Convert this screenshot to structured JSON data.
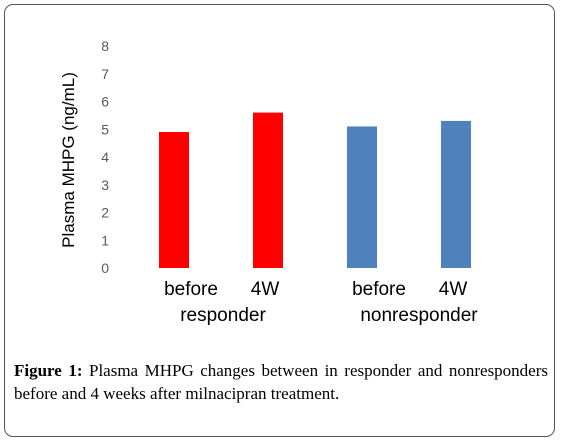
{
  "chart_data": {
    "type": "bar",
    "ylabel": "Plasma MHPG (ng/mL)",
    "ylim": [
      0,
      8
    ],
    "yticks": [
      0,
      1,
      2,
      3,
      4,
      5,
      6,
      7,
      8
    ],
    "grid": false,
    "groups": [
      {
        "label": "responder",
        "color": "#ff0000",
        "bars": [
          {
            "category": "before",
            "value": 4.9
          },
          {
            "category": "4W",
            "value": 5.6
          }
        ]
      },
      {
        "label": "nonresponder",
        "color": "#4f81bd",
        "bars": [
          {
            "category": "before",
            "value": 5.1
          },
          {
            "category": "4W",
            "value": 5.3
          }
        ]
      }
    ]
  },
  "caption": {
    "label": "Figure 1:",
    "text": "Plasma MHPG changes between in responder and nonresponders before and 4 weeks after milnacipran treatment."
  }
}
